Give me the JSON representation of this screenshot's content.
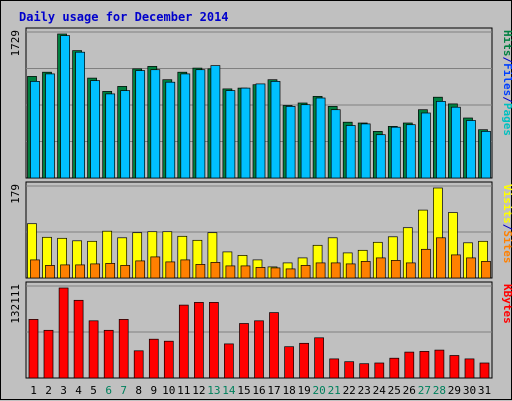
{
  "chart_data": {
    "title": "Daily usage for December 2014",
    "type": "bar",
    "days": [
      "1",
      "2",
      "3",
      "4",
      "5",
      "6",
      "7",
      "8",
      "9",
      "10",
      "11",
      "12",
      "13",
      "14",
      "15",
      "16",
      "17",
      "18",
      "19",
      "20",
      "21",
      "22",
      "23",
      "24",
      "25",
      "26",
      "27",
      "28",
      "29",
      "30",
      "31"
    ],
    "weekend_days": [
      "6",
      "7",
      "13",
      "14",
      "20",
      "21",
      "27",
      "28"
    ],
    "colors": {
      "day_label": "#000000",
      "weekend_label": "#00805c",
      "hits": "#008040",
      "files": "#00c0ff",
      "pages": "#00e0ff",
      "visits": "#ffff00",
      "sites": "#ff8000",
      "kbytes": "#ff0000",
      "title": "#0000cc"
    },
    "panels": [
      {
        "max_label": "1729",
        "ymax": 1729,
        "legend": [
          {
            "text": "Hits",
            "color": "#008040"
          },
          {
            "text": "/",
            "color": "#0000cc"
          },
          {
            "text": "Files",
            "color": "#0040ff"
          },
          {
            "text": "/",
            "color": "#0000cc"
          },
          {
            "text": "Pages",
            "color": "#00c0c0"
          }
        ],
        "series": [
          {
            "name": "Hits",
            "color": "#008040",
            "values": [
              1220,
              1270,
              1729,
              1530,
              1200,
              1040,
              1100,
              1310,
              1340,
              1180,
              1270,
              1320,
              1310,
              1070,
              1080,
              1120,
              1180,
              870,
              900,
              980,
              860,
              670,
              660,
              560,
              620,
              660,
              820,
              970,
              890,
              720,
              580
            ]
          },
          {
            "name": "Files",
            "color": "#00c0ff",
            "values": [
              1160,
              1250,
              1710,
              1510,
              1170,
              1010,
              1050,
              1290,
              1300,
              1150,
              1250,
              1300,
              1350,
              1050,
              1080,
              1130,
              1160,
              860,
              880,
              960,
              820,
              630,
              650,
              520,
              610,
              640,
              780,
              920,
              850,
              690,
              560
            ]
          }
        ]
      },
      {
        "max_label": "179",
        "ymax": 179,
        "legend": [
          {
            "text": "Visits",
            "color": "#ffff00"
          },
          {
            "text": "/",
            "color": "#0000cc"
          },
          {
            "text": "Sites",
            "color": "#ff8000"
          }
        ],
        "series": [
          {
            "name": "Visits",
            "color": "#ffff00",
            "values": [
              108,
              81,
              79,
              74,
              73,
              93,
              80,
              90,
              92,
              92,
              83,
              75,
              90,
              52,
              45,
              36,
              22,
              30,
              40,
              65,
              80,
              50,
              55,
              71,
              82,
              100,
              135,
              179,
              130,
              70,
              73
            ]
          },
          {
            "name": "Sites",
            "color": "#ff8000",
            "values": [
              36,
              25,
              26,
              26,
              28,
              29,
              25,
              34,
              42,
              32,
              36,
              27,
              31,
              24,
              24,
              21,
              20,
              18,
              25,
              30,
              30,
              28,
              33,
              40,
              35,
              30,
              57,
              80,
              46,
              40,
              33
            ]
          }
        ]
      },
      {
        "max_label": "132111",
        "ymax": 132111,
        "legend": [
          {
            "text": "KBytes",
            "color": "#ff0000"
          }
        ],
        "series": [
          {
            "name": "KBytes",
            "color": "#ff0000",
            "values": [
              86000,
              70000,
              132111,
              114000,
              84000,
              70000,
              86000,
              40000,
              57000,
              54000,
              107000,
              111000,
              111000,
              50000,
              80000,
              84000,
              96000,
              46000,
              51000,
              59000,
              28000,
              24000,
              21000,
              22000,
              29000,
              38000,
              39000,
              41000,
              33000,
              28000,
              22000
            ]
          }
        ]
      }
    ]
  }
}
